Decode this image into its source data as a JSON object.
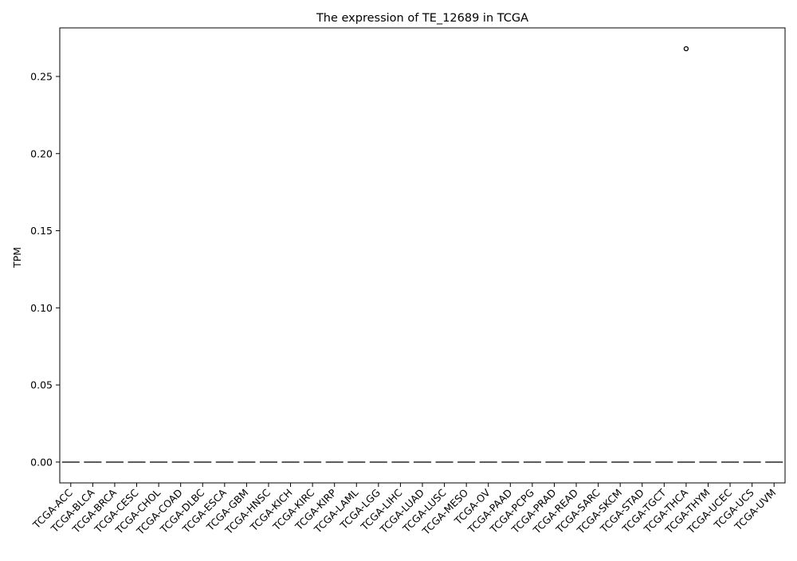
{
  "chart_data": {
    "type": "box",
    "title": "The expression of TE_12689 in TCGA",
    "xlabel": "",
    "ylabel": "TPM",
    "ylim": [
      -0.0135,
      0.2815
    ],
    "yticks": [
      0.0,
      0.05,
      0.1,
      0.15,
      0.2,
      0.25
    ],
    "ytick_labels": [
      "0.00",
      "0.05",
      "0.10",
      "0.15",
      "0.20",
      "0.25"
    ],
    "grid": false,
    "legend": "none",
    "categories": [
      "TCGA-ACC",
      "TCGA-BLCA",
      "TCGA-BRCA",
      "TCGA-CESC",
      "TCGA-CHOL",
      "TCGA-COAD",
      "TCGA-DLBC",
      "TCGA-ESCA",
      "TCGA-GBM",
      "TCGA-HNSC",
      "TCGA-KICH",
      "TCGA-KIRC",
      "TCGA-KIRP",
      "TCGA-LAML",
      "TCGA-LGG",
      "TCGA-LIHC",
      "TCGA-LUAD",
      "TCGA-LUSC",
      "TCGA-MESO",
      "TCGA-OV",
      "TCGA-PAAD",
      "TCGA-PCPG",
      "TCGA-PRAD",
      "TCGA-READ",
      "TCGA-SARC",
      "TCGA-SKCM",
      "TCGA-STAD",
      "TCGA-TGCT",
      "TCGA-THCA",
      "TCGA-THYM",
      "TCGA-UCEC",
      "TCGA-UCS",
      "TCGA-UVM"
    ],
    "medians": [
      0,
      0,
      0,
      0,
      0,
      0,
      0,
      0,
      0,
      0,
      0,
      0,
      0,
      0,
      0,
      0,
      0,
      0,
      0,
      0,
      0,
      0,
      0,
      0,
      0,
      0,
      0,
      0,
      0,
      0,
      0,
      0,
      0
    ],
    "outliers": [
      {
        "category": "TCGA-THCA",
        "value": 0.268
      }
    ],
    "colors": {
      "box_line": "#555555",
      "axis": "#000000",
      "outlier": "#000000"
    }
  }
}
